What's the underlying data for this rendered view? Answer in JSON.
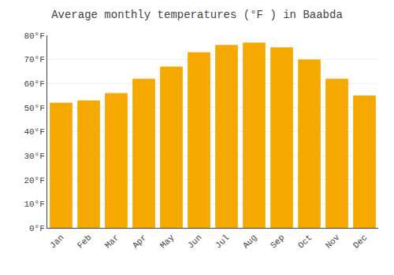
{
  "chart_data": {
    "type": "bar",
    "title": "Average monthly temperatures (°F ) in Baabda",
    "categories": [
      "Jan",
      "Feb",
      "Mar",
      "Apr",
      "May",
      "Jun",
      "Jul",
      "Aug",
      "Sep",
      "Oct",
      "Nov",
      "Dec"
    ],
    "values": [
      52,
      53,
      56,
      62,
      67,
      73,
      76,
      77,
      75,
      70,
      62,
      55
    ],
    "color": "#F5A800",
    "ylim": [
      0,
      80
    ],
    "yticks": [
      {
        "value": 0,
        "label": "0°F"
      },
      {
        "value": 10,
        "label": "10°F"
      },
      {
        "value": 20,
        "label": "20°F"
      },
      {
        "value": 30,
        "label": "30°F"
      },
      {
        "value": 40,
        "label": "40°F"
      },
      {
        "value": 50,
        "label": "50°F"
      },
      {
        "value": 60,
        "label": "60°F"
      },
      {
        "value": 70,
        "label": "70°F"
      },
      {
        "value": 80,
        "label": "80°F"
      }
    ],
    "grid": true
  }
}
